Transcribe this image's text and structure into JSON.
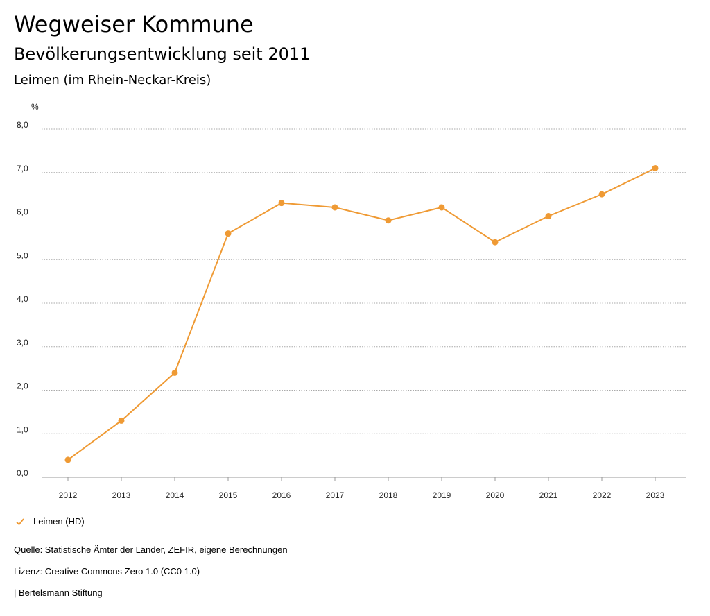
{
  "header": {
    "title": "Wegweiser Kommune",
    "subtitle": "Bevölkerungsentwicklung seit 2011",
    "region": "Leimen (im Rhein-Neckar-Kreis)"
  },
  "chart_data": {
    "type": "line",
    "ylabel": "%",
    "ylim": [
      0,
      8
    ],
    "yticks": [
      "0,0",
      "1,0",
      "2,0",
      "3,0",
      "4,0",
      "5,0",
      "6,0",
      "7,0",
      "8,0"
    ],
    "categories": [
      "2012",
      "2013",
      "2014",
      "2015",
      "2016",
      "2017",
      "2018",
      "2019",
      "2020",
      "2021",
      "2022",
      "2023"
    ],
    "series": [
      {
        "name": "Leimen (HD)",
        "color": "#ef9a34",
        "values": [
          0.4,
          1.3,
          2.4,
          5.6,
          6.3,
          6.2,
          5.9,
          6.2,
          5.4,
          6.0,
          6.5,
          7.1
        ]
      }
    ],
    "grid": true
  },
  "legend": {
    "label": "Leimen (HD)"
  },
  "footer": {
    "source": "Quelle: Statistische Ämter der Länder, ZEFIR, eigene Berechnungen",
    "license": "Lizenz: Creative Commons Zero 1.0 (CC0 1.0)",
    "publisher": "| Bertelsmann Stiftung"
  }
}
